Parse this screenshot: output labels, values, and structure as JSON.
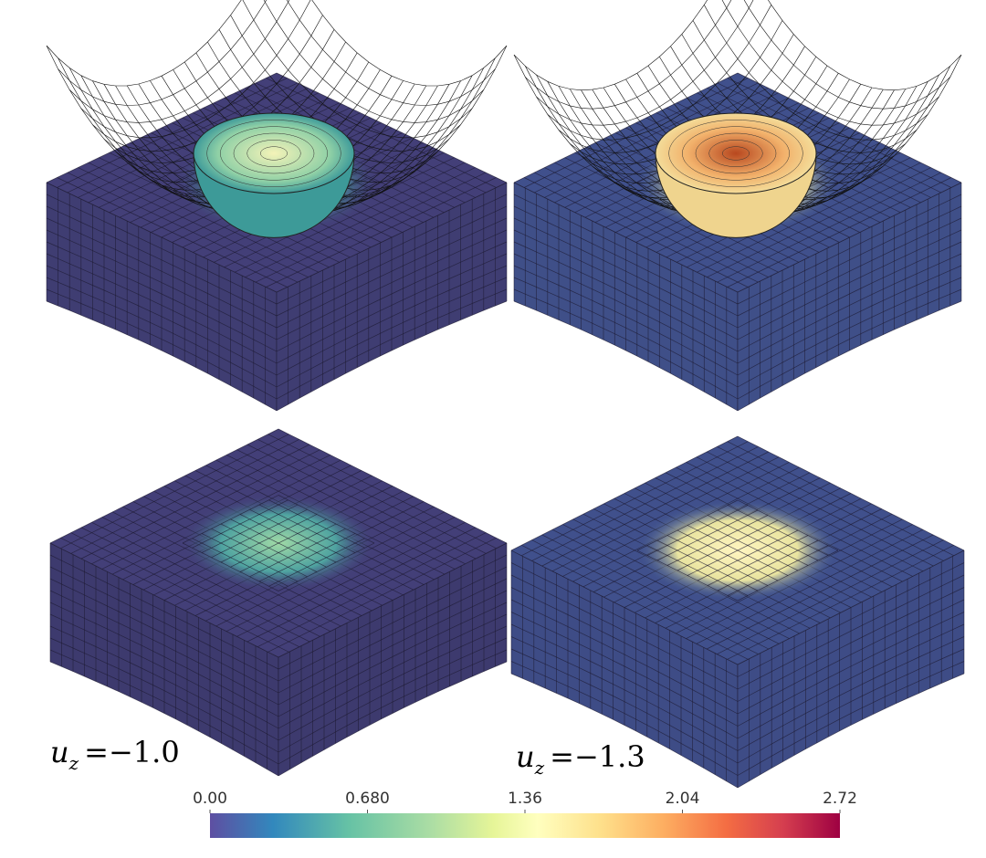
{
  "panels": [
    {
      "variable": "u",
      "subscript": "z",
      "equation": "=−1.0"
    },
    {
      "variable": "u",
      "subscript": "z",
      "equation": "=−1.3"
    }
  ],
  "colorbar": {
    "range": [
      0,
      2.72
    ],
    "ticks": [
      {
        "value": 0,
        "label": "0.00"
      },
      {
        "value": 0.68,
        "label": "0.680"
      },
      {
        "value": 1.36,
        "label": "1.36"
      },
      {
        "value": 2.04,
        "label": "2.04"
      },
      {
        "value": 2.72,
        "label": "2.72"
      }
    ]
  }
}
